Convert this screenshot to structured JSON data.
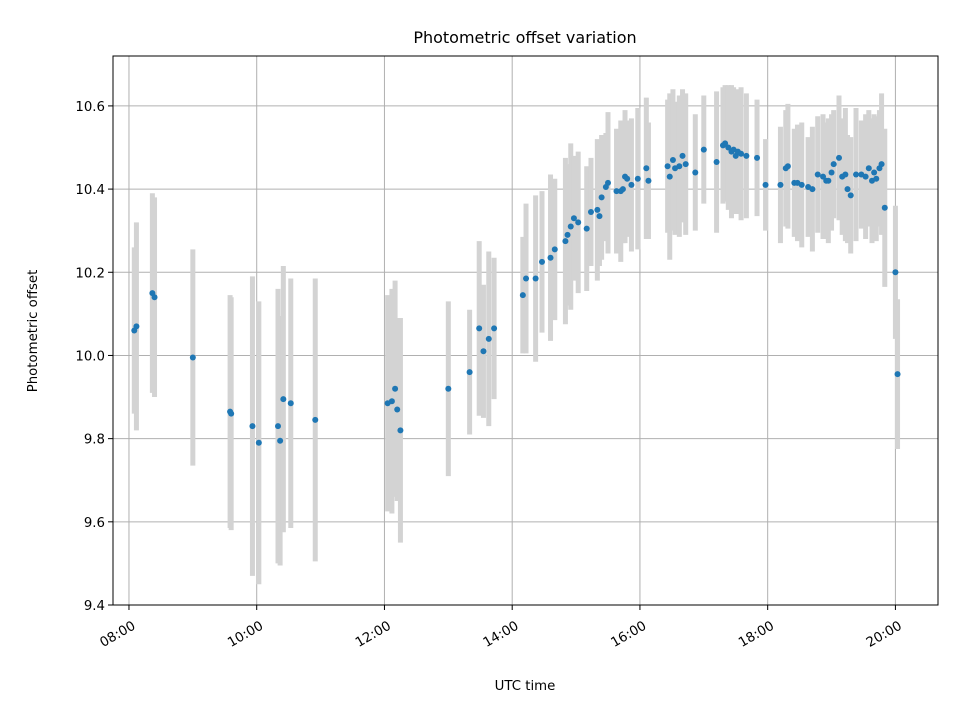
{
  "chart_data": {
    "type": "scatter",
    "title": "Photometric offset variation",
    "xlabel": "UTC time",
    "ylabel": "Photometric offset",
    "xlim": [
      "07:45",
      "20:40"
    ],
    "ylim": [
      9.4,
      10.72
    ],
    "x_ticks": [
      "08:00",
      "10:00",
      "12:00",
      "14:00",
      "16:00",
      "18:00",
      "20:00"
    ],
    "y_ticks": [
      "9.4",
      "9.6",
      "9.8",
      "10.0",
      "10.2",
      "10.4",
      "10.6"
    ],
    "grid": true,
    "colors": {
      "points": "#1f77b4",
      "errorbars": "#d3d3d3",
      "grid": "#b0b0b0",
      "axes": "#000000"
    },
    "series": [
      {
        "x": [
          "08:05",
          "08:07",
          "08:22",
          "08:24",
          "09:00",
          "09:35",
          "09:36",
          "09:56",
          "10:02",
          "10:20",
          "10:22",
          "10:25",
          "10:32",
          "10:55",
          "12:03",
          "12:07",
          "12:10",
          "12:12",
          "12:15",
          "13:00",
          "13:20",
          "13:29",
          "13:33",
          "13:38",
          "13:43",
          "14:10",
          "14:13",
          "14:22",
          "14:28",
          "14:36",
          "14:40",
          "14:50",
          "14:52",
          "14:55",
          "14:58",
          "15:02",
          "15:10",
          "15:14",
          "15:20",
          "15:22",
          "15:24",
          "15:28",
          "15:30",
          "15:38",
          "15:42",
          "15:44",
          "15:46",
          "15:48",
          "15:52",
          "15:58",
          "16:06",
          "16:08",
          "16:26",
          "16:28",
          "16:31",
          "16:33",
          "16:37",
          "16:40",
          "16:43",
          "16:52",
          "17:00",
          "17:12",
          "17:18",
          "17:20",
          "17:23",
          "17:26",
          "17:28",
          "17:30",
          "17:32",
          "17:35",
          "17:40",
          "17:50",
          "17:58",
          "18:12",
          "18:17",
          "18:19",
          "18:25",
          "18:28",
          "18:32",
          "18:38",
          "18:42",
          "18:47",
          "18:52",
          "18:55",
          "18:57",
          "19:00",
          "19:02",
          "19:07",
          "19:10",
          "19:13",
          "19:15",
          "19:18",
          "19:23",
          "19:28",
          "19:32",
          "19:35",
          "19:38",
          "19:40",
          "19:42",
          "19:45",
          "19:47",
          "19:50",
          "20:00",
          "20:02"
        ],
        "y": [
          10.06,
          10.07,
          10.15,
          10.14,
          9.995,
          9.865,
          9.86,
          9.83,
          9.79,
          9.83,
          9.795,
          9.895,
          9.885,
          9.845,
          9.885,
          9.89,
          9.92,
          9.87,
          9.82,
          9.92,
          9.96,
          10.065,
          10.01,
          10.04,
          10.065,
          10.145,
          10.185,
          10.185,
          10.225,
          10.235,
          10.255,
          10.275,
          10.29,
          10.31,
          10.33,
          10.32,
          10.305,
          10.345,
          10.35,
          10.335,
          10.38,
          10.405,
          10.415,
          10.395,
          10.395,
          10.4,
          10.43,
          10.425,
          10.41,
          10.425,
          10.45,
          10.42,
          10.455,
          10.43,
          10.47,
          10.45,
          10.455,
          10.48,
          10.46,
          10.44,
          10.495,
          10.465,
          10.505,
          10.51,
          10.5,
          10.49,
          10.495,
          10.48,
          10.49,
          10.485,
          10.48,
          10.475,
          10.41,
          10.41,
          10.45,
          10.455,
          10.415,
          10.415,
          10.41,
          10.405,
          10.4,
          10.435,
          10.43,
          10.42,
          10.42,
          10.44,
          10.46,
          10.475,
          10.43,
          10.435,
          10.4,
          10.385,
          10.435,
          10.435,
          10.43,
          10.45,
          10.42,
          10.44,
          10.425,
          10.45,
          10.46,
          10.355,
          10.2,
          9.955
        ],
        "err": [
          0.2,
          0.25,
          0.24,
          0.24,
          0.26,
          0.28,
          0.28,
          0.36,
          0.34,
          0.33,
          0.3,
          0.32,
          0.3,
          0.34,
          0.26,
          0.27,
          0.26,
          0.22,
          0.27,
          0.21,
          0.15,
          0.21,
          0.16,
          0.21,
          0.17,
          0.14,
          0.18,
          0.2,
          0.17,
          0.2,
          0.17,
          0.2,
          0.17,
          0.2,
          0.15,
          0.17,
          0.15,
          0.13,
          0.17,
          0.12,
          0.15,
          0.13,
          0.17,
          0.15,
          0.17,
          0.13,
          0.16,
          0.14,
          0.16,
          0.17,
          0.17,
          0.14,
          0.16,
          0.2,
          0.17,
          0.16,
          0.17,
          0.16,
          0.17,
          0.14,
          0.13,
          0.17,
          0.14,
          0.14,
          0.15,
          0.16,
          0.15,
          0.14,
          0.15,
          0.16,
          0.15,
          0.14,
          0.11,
          0.14,
          0.14,
          0.15,
          0.13,
          0.14,
          0.15,
          0.12,
          0.15,
          0.14,
          0.15,
          0.14,
          0.15,
          0.14,
          0.13,
          0.15,
          0.14,
          0.16,
          0.13,
          0.14,
          0.16,
          0.13,
          0.15,
          0.14,
          0.15,
          0.14,
          0.15,
          0.14,
          0.17,
          0.19,
          0.16,
          0.18
        ]
      }
    ]
  }
}
